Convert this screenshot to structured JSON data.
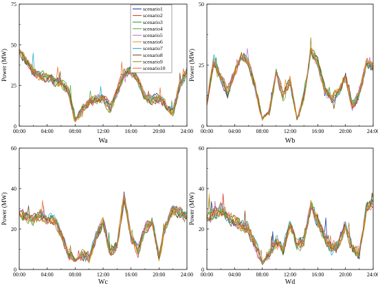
{
  "legend": {
    "placement": "top-right of first panel",
    "entries": [
      "scenario1",
      "scenario2",
      "scenario3",
      "scenario4",
      "scenario5",
      "scenario6",
      "scenario7",
      "scenario8",
      "scenario9",
      "scenario10"
    ]
  },
  "series_colors": [
    "#1f3f9a",
    "#e0392b",
    "#2a9a3e",
    "#5fae3a",
    "#c878d8",
    "#e0a020",
    "#2ab0c8",
    "#7a4a1e",
    "#9a8a22",
    "#ee7733"
  ],
  "chart_data": [
    {
      "type": "line",
      "panel": "Wa",
      "xlabel": "Wa",
      "ylabel": "Power (MW)",
      "xlim": [
        0,
        24
      ],
      "ylim": [
        0,
        75
      ],
      "xticks": [
        "00:00",
        "04:00",
        "08:00",
        "12:00",
        "16:00",
        "20:00",
        "24:00"
      ],
      "yticks": [
        0,
        25,
        50,
        75
      ],
      "grid": false,
      "hours": [
        0,
        1,
        2,
        3,
        4,
        5,
        6,
        7,
        8,
        9,
        10,
        11,
        12,
        13,
        14,
        15,
        16,
        17,
        18,
        19,
        20,
        21,
        22,
        23,
        24
      ],
      "base_profile": [
        46,
        40,
        34,
        31,
        30,
        28,
        26,
        22,
        4,
        9,
        15,
        16,
        17,
        11,
        21,
        32,
        34,
        28,
        18,
        16,
        17,
        13,
        9,
        25,
        34
      ],
      "noise_amplitude": 4.5
    },
    {
      "type": "line",
      "panel": "Wb",
      "xlabel": "Wb",
      "ylabel": "Power (MW)",
      "xlim": [
        0,
        24
      ],
      "ylim": [
        0,
        50
      ],
      "xticks": [
        "00:00",
        "04:00",
        "08:00",
        "12:00",
        "16:00",
        "20:00",
        "24:00"
      ],
      "yticks": [
        0,
        25,
        50
      ],
      "grid": false,
      "hours": [
        0,
        1,
        2,
        3,
        4,
        5,
        6,
        7,
        8,
        9,
        10,
        11,
        12,
        13,
        14,
        15,
        16,
        17,
        18,
        19,
        20,
        21,
        22,
        23,
        24
      ],
      "base_profile": [
        10,
        27,
        20,
        14,
        22,
        29,
        26,
        16,
        3,
        6,
        22,
        12,
        19,
        3,
        12,
        31,
        26,
        15,
        11,
        14,
        20,
        8,
        13,
        26,
        24
      ],
      "noise_amplitude": 3
    },
    {
      "type": "line",
      "panel": "Wc",
      "xlabel": "Wc",
      "ylabel": "Power (MW)",
      "xlim": [
        0,
        24
      ],
      "ylim": [
        0,
        60
      ],
      "xticks": [
        "00:00",
        "04:00",
        "08:00",
        "12:00",
        "16:00",
        "20:00",
        "24:00"
      ],
      "yticks": [
        0,
        20,
        40,
        60
      ],
      "grid": false,
      "hours": [
        0,
        1,
        2,
        3,
        4,
        5,
        6,
        7,
        8,
        9,
        10,
        11,
        12,
        13,
        14,
        15,
        16,
        17,
        18,
        19,
        20,
        21,
        22,
        23,
        24
      ],
      "base_profile": [
        28,
        26,
        24,
        27,
        25,
        24,
        18,
        8,
        4,
        7,
        6,
        16,
        24,
        8,
        12,
        36,
        16,
        9,
        20,
        24,
        6,
        22,
        30,
        28,
        26
      ],
      "noise_amplitude": 4
    },
    {
      "type": "line",
      "panel": "Wd",
      "xlabel": "Wd",
      "ylabel": "Power (MW)",
      "xlim": [
        0,
        24
      ],
      "ylim": [
        0,
        60
      ],
      "xticks": [
        "00:00",
        "04:00",
        "08:00",
        "12:00",
        "16:00",
        "20:00",
        "24:00"
      ],
      "yticks": [
        0,
        20,
        40,
        60
      ],
      "grid": false,
      "hours": [
        0,
        1,
        2,
        3,
        4,
        5,
        6,
        7,
        8,
        9,
        10,
        11,
        12,
        13,
        14,
        15,
        16,
        17,
        18,
        19,
        20,
        21,
        22,
        23,
        24
      ],
      "base_profile": [
        24,
        28,
        30,
        26,
        24,
        22,
        20,
        12,
        3,
        8,
        14,
        10,
        22,
        12,
        14,
        32,
        24,
        16,
        10,
        12,
        22,
        10,
        8,
        30,
        34
      ],
      "noise_amplitude": 4.5
    }
  ]
}
